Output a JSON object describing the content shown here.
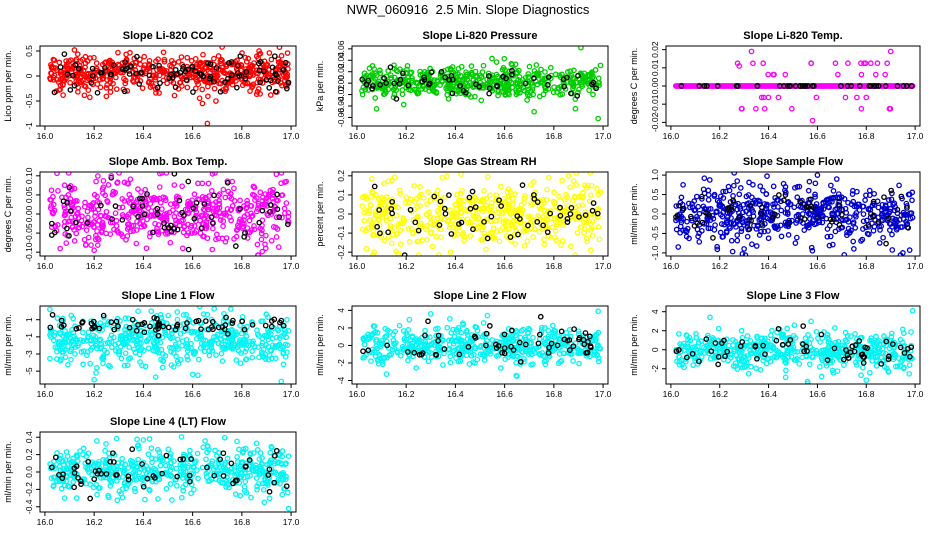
{
  "figure_title": "NWR_060916  2.5 Min. Slope Diagnostics",
  "colors": {
    "highlight": "#000000",
    "red": "#ff0000",
    "green": "#00cc00",
    "magenta": "#ff00ff",
    "yellow": "#ffff00",
    "blue": "#0000cc",
    "cyan": "#00f5f5"
  },
  "chart_data": [
    {
      "type": "scatter",
      "title": "Slope Li-820 CO2",
      "ylabel": "Lico ppm per min.",
      "xlim": [
        15.98,
        17.02
      ],
      "ylim": [
        -1.0,
        0.6
      ],
      "xticks": [
        16.0,
        16.2,
        16.4,
        16.6,
        16.8,
        17.0
      ],
      "xtick_labels": [
        "16.0",
        "16.2",
        "16.4",
        "16.6",
        "16.8",
        "17.0"
      ],
      "yticks": [
        -1.0,
        -0.5,
        0.0,
        0.5
      ],
      "ytick_labels": [
        "-1",
        "-0.5",
        "0",
        "0.5"
      ],
      "series_color": "red",
      "spread": 0.19,
      "center": 0.05,
      "n_points": 540,
      "n_highlight": 95,
      "outliers": [
        [
          16.66,
          -0.95
        ],
        [
          16.64,
          -0.55
        ],
        [
          16.12,
          0.52
        ],
        [
          16.87,
          0.5
        ]
      ]
    },
    {
      "type": "scatter",
      "title": "Slope Li-820 Pressure",
      "ylabel": "kPa per min.",
      "xlim": [
        15.98,
        17.02
      ],
      "ylim": [
        -0.075,
        0.065
      ],
      "xticks": [
        16.0,
        16.2,
        16.4,
        16.6,
        16.8,
        17.0
      ],
      "xtick_labels": [
        "16.0",
        "16.2",
        "16.4",
        "16.6",
        "16.8",
        "17.0"
      ],
      "yticks": [
        -0.06,
        -0.04,
        -0.02,
        0.0,
        0.02,
        0.04,
        0.06
      ],
      "ytick_labels": [
        "-0.06",
        "-0.04",
        "-0.02",
        "0.00",
        "0.02",
        "0.04",
        "0.06"
      ],
      "series_color": "green",
      "spread": 0.013,
      "center": 0.002,
      "n_points": 520,
      "n_highlight": 55,
      "outliers": [
        [
          16.91,
          0.062
        ],
        [
          16.98,
          -0.062
        ],
        [
          16.72,
          -0.05
        ],
        [
          16.08,
          -0.045
        ]
      ]
    },
    {
      "type": "scatter",
      "title": "Slope Li-820 Temp.",
      "ylabel": "degrees C per min.",
      "xlim": [
        15.98,
        17.02
      ],
      "ylim": [
        -0.022,
        0.022
      ],
      "xticks": [
        16.0,
        16.2,
        16.4,
        16.6,
        16.8,
        17.0
      ],
      "xtick_labels": [
        "16.0",
        "16.2",
        "16.4",
        "16.6",
        "16.8",
        "17.0"
      ],
      "yticks": [
        -0.02,
        -0.01,
        0.0,
        0.01,
        0.02
      ],
      "ytick_labels": [
        "-0.02",
        "-0.01",
        "0.00",
        "0.01",
        "0.02"
      ],
      "series_color": "magenta",
      "discrete_levels": [
        -0.0125,
        -0.0063,
        0.0,
        0.0063,
        0.0125
      ],
      "n_points": 230,
      "n_highlight": 40,
      "outliers": [
        [
          16.9,
          0.019
        ],
        [
          16.33,
          0.019
        ],
        [
          16.58,
          -0.019
        ],
        [
          16.28,
          0.011
        ]
      ]
    },
    {
      "type": "scatter",
      "title": "Slope Amb. Box Temp.",
      "ylabel": "degrees C per min.",
      "xlim": [
        15.98,
        17.02
      ],
      "ylim": [
        -0.11,
        0.11
      ],
      "xticks": [
        16.0,
        16.2,
        16.4,
        16.6,
        16.8,
        17.0
      ],
      "xtick_labels": [
        "16.0",
        "16.2",
        "16.4",
        "16.6",
        "16.8",
        "17.0"
      ],
      "yticks": [
        -0.1,
        -0.05,
        0.0,
        0.05,
        0.1
      ],
      "ytick_labels": [
        "-0.10",
        "-0.05",
        "0.00",
        "0.05",
        "0.10"
      ],
      "series_color": "magenta",
      "spread": 0.043,
      "center": 0.0,
      "n_points": 540,
      "n_highlight": 60,
      "outliers": [
        [
          16.27,
          0.1
        ],
        [
          16.98,
          0.085
        ],
        [
          16.2,
          -0.095
        ],
        [
          16.56,
          -0.09
        ]
      ]
    },
    {
      "type": "scatter",
      "title": "Slope Gas Stream RH",
      "ylabel": "percent per min.",
      "xlim": [
        15.98,
        17.02
      ],
      "ylim": [
        -0.22,
        0.22
      ],
      "xticks": [
        16.0,
        16.2,
        16.4,
        16.6,
        16.8,
        17.0
      ],
      "xtick_labels": [
        "16.0",
        "16.2",
        "16.4",
        "16.6",
        "16.8",
        "17.0"
      ],
      "yticks": [
        -0.2,
        -0.1,
        0.0,
        0.1,
        0.2
      ],
      "ytick_labels": [
        "-0.2",
        "-0.1",
        "0.0",
        "0.1",
        "0.2"
      ],
      "series_color": "yellow",
      "spread": 0.085,
      "center": 0.0,
      "n_points": 520,
      "n_highlight": 55,
      "outliers": [
        [
          16.38,
          -0.2
        ],
        [
          16.86,
          0.2
        ],
        [
          16.95,
          -0.19
        ],
        [
          16.07,
          -0.2
        ]
      ]
    },
    {
      "type": "scatter",
      "title": "Slope Sample Flow",
      "ylabel": "ml/min per min.",
      "xlim": [
        15.98,
        17.02
      ],
      "ylim": [
        -1.08,
        1.08
      ],
      "xticks": [
        16.0,
        16.2,
        16.4,
        16.6,
        16.8,
        17.0
      ],
      "xtick_labels": [
        "16.0",
        "16.2",
        "16.4",
        "16.6",
        "16.8",
        "17.0"
      ],
      "yticks": [
        -1.0,
        -0.5,
        0.0,
        0.5,
        1.0
      ],
      "ytick_labels": [
        "-1.0",
        "-0.5",
        "0.0",
        "0.5",
        "1.0"
      ],
      "series_color": "blue",
      "spread": 0.36,
      "center": 0.0,
      "n_points": 540,
      "n_highlight": 60,
      "outliers": [
        [
          16.71,
          -1.05
        ],
        [
          16.05,
          0.75
        ],
        [
          16.6,
          1.0
        ],
        [
          16.95,
          -1.0
        ]
      ]
    },
    {
      "type": "scatter",
      "title": "Slope Line 1 Flow",
      "ylabel": "ml/min per min.",
      "xlim": [
        15.98,
        17.02
      ],
      "ylim": [
        -6.5,
        2.6
      ],
      "xticks": [
        16.0,
        16.2,
        16.4,
        16.6,
        16.8,
        17.0
      ],
      "xtick_labels": [
        "16.0",
        "16.2",
        "16.4",
        "16.6",
        "16.8",
        "17.0"
      ],
      "yticks": [
        -5,
        -3,
        -1,
        1
      ],
      "ytick_labels": [
        "-5",
        "-3",
        "-1",
        "1"
      ],
      "series_color": "cyan",
      "spread": 1.5,
      "center": -1.4,
      "n_points": 520,
      "n_highlight": 70,
      "highlight_center": 0.4,
      "highlight_spread": 0.45,
      "outliers": [
        [
          16.2,
          -6.0
        ],
        [
          16.96,
          -6.2
        ],
        [
          16.02,
          2.2
        ],
        [
          16.45,
          -5.7
        ]
      ]
    },
    {
      "type": "scatter",
      "title": "Slope Line 2 Flow",
      "ylabel": "ml/min per min.",
      "xlim": [
        15.98,
        17.02
      ],
      "ylim": [
        -4.4,
        4.5
      ],
      "xticks": [
        16.0,
        16.2,
        16.4,
        16.6,
        16.8,
        17.0
      ],
      "xtick_labels": [
        "16.0",
        "16.2",
        "16.4",
        "16.6",
        "16.8",
        "17.0"
      ],
      "yticks": [
        -4,
        -2,
        0,
        2,
        4
      ],
      "ytick_labels": [
        "-4",
        "-2",
        "0",
        "2",
        "4"
      ],
      "series_color": "cyan",
      "spread": 1.05,
      "center": 0.0,
      "n_points": 520,
      "n_highlight": 60,
      "outliers": [
        [
          16.98,
          3.9
        ],
        [
          16.3,
          3.6
        ],
        [
          16.53,
          3.4
        ],
        [
          16.65,
          -3.5
        ]
      ]
    },
    {
      "type": "scatter",
      "title": "Slope Line 3 Flow",
      "ylabel": "ml/min per min.",
      "xlim": [
        15.98,
        17.02
      ],
      "ylim": [
        -3.6,
        4.6
      ],
      "xticks": [
        16.0,
        16.2,
        16.4,
        16.6,
        16.8,
        17.0
      ],
      "xtick_labels": [
        "16.0",
        "16.2",
        "16.4",
        "16.6",
        "16.8",
        "17.0"
      ],
      "yticks": [
        -2,
        0,
        2,
        4
      ],
      "ytick_labels": [
        "-2",
        "0",
        "2",
        "4"
      ],
      "series_color": "cyan",
      "spread": 0.95,
      "center": 0.0,
      "n_points": 520,
      "n_highlight": 60,
      "outliers": [
        [
          16.99,
          4.1
        ],
        [
          16.16,
          3.4
        ],
        [
          16.8,
          -3.2
        ],
        [
          16.47,
          -2.9
        ]
      ]
    },
    {
      "type": "scatter",
      "title": "Slope Line 4 (LT) Flow",
      "ylabel": "ml/min per min.",
      "xlim": [
        15.98,
        17.02
      ],
      "ylim": [
        -0.46,
        0.46
      ],
      "xticks": [
        16.0,
        16.2,
        16.4,
        16.6,
        16.8,
        17.0
      ],
      "xtick_labels": [
        "16.0",
        "16.2",
        "16.4",
        "16.6",
        "16.8",
        "17.0"
      ],
      "yticks": [
        -0.4,
        -0.2,
        0.0,
        0.2,
        0.4
      ],
      "ytick_labels": [
        "-0.4",
        "-0.2",
        "0.0",
        "0.2",
        "0.4"
      ],
      "series_color": "cyan",
      "spread": 0.14,
      "center": 0.0,
      "n_points": 520,
      "n_highlight": 60,
      "outliers": [
        [
          16.4,
          0.37
        ],
        [
          16.86,
          0.33
        ],
        [
          16.99,
          -0.42
        ],
        [
          16.08,
          -0.3
        ]
      ]
    }
  ]
}
